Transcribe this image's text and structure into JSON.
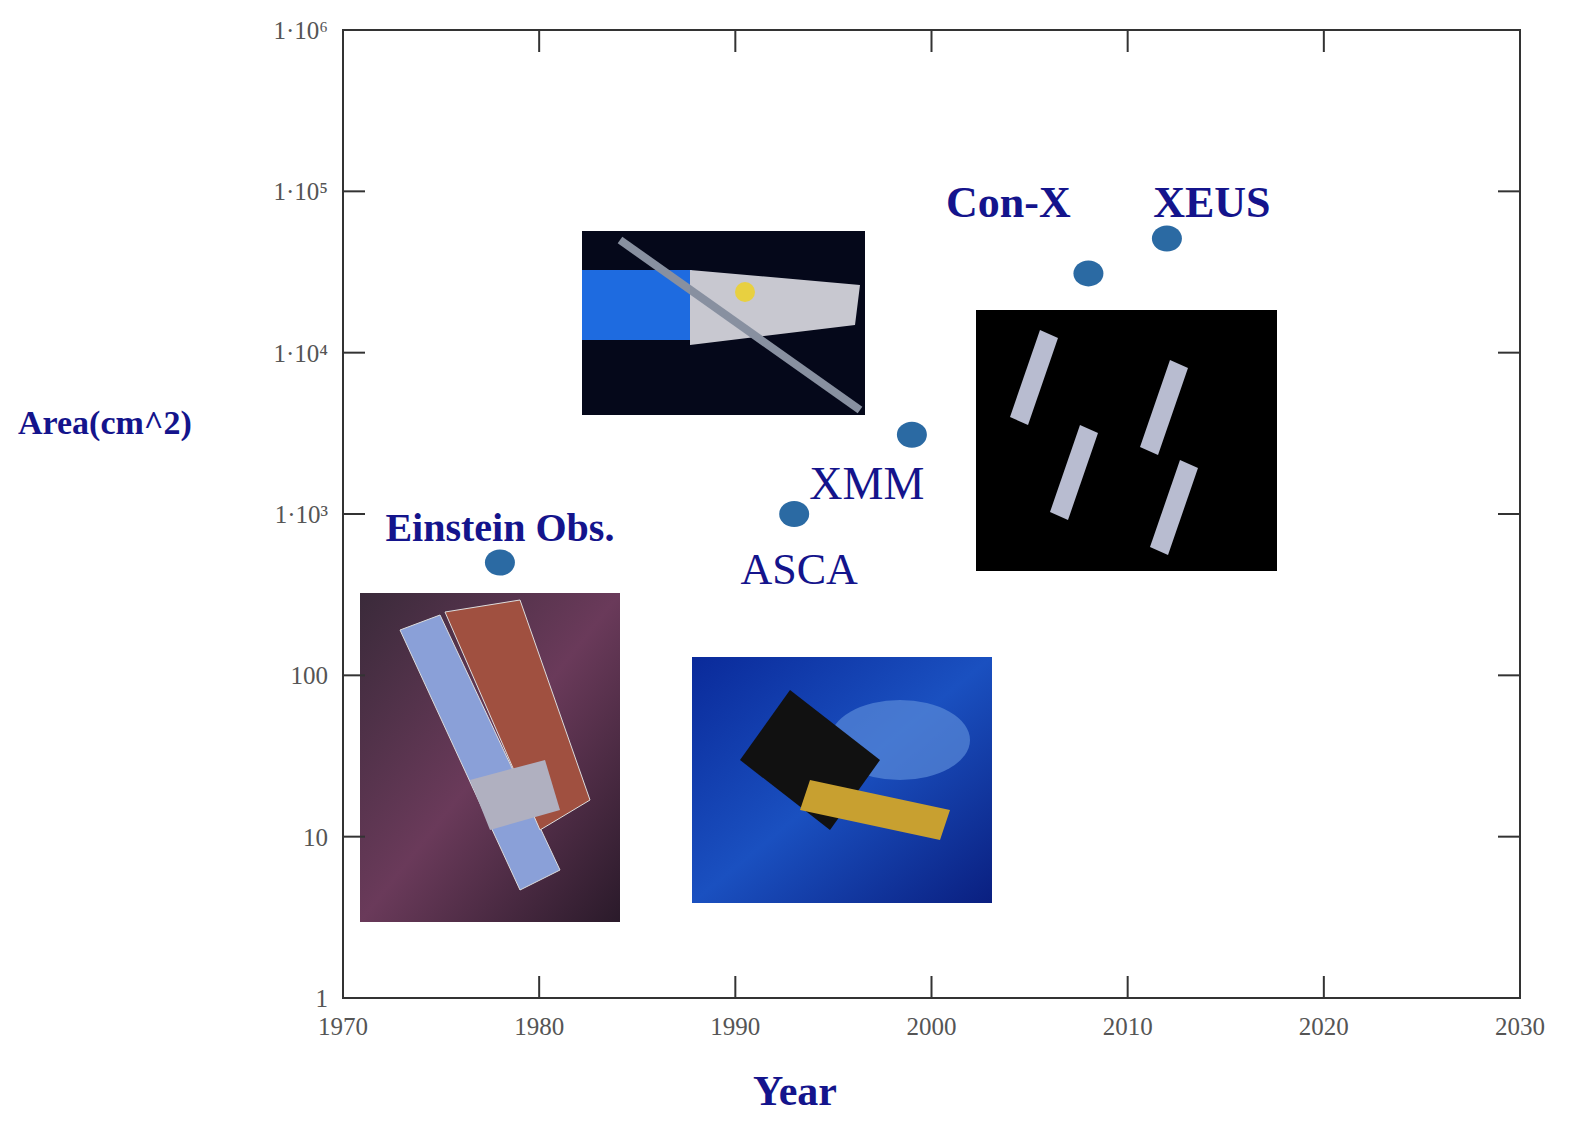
{
  "chart_data": {
    "type": "scatter",
    "x_label": "Year",
    "y_label": "Area(cm^2)",
    "x": [
      1978,
      1993,
      1999,
      2008,
      2012
    ],
    "values": [
      500,
      1000,
      3100,
      31000,
      51000
    ],
    "annotations": [
      "Einstein Obs.",
      "ASCA",
      "XMM",
      "Con-X",
      "XEUS"
    ],
    "color": "#2b6aa3",
    "marker": "circle",
    "log": "y",
    "grid": false,
    "xlim": [
      1970,
      2030
    ],
    "xticks": [
      1970,
      1980,
      1990,
      2000,
      2010,
      2020,
      2030
    ],
    "ylim": [
      1,
      1000000
    ],
    "yticks": [
      1,
      10,
      100,
      {
        "value": 1000,
        "label": "1·10³"
      },
      {
        "value": 10000,
        "label": "1·10⁴"
      },
      {
        "value": 100000,
        "label": "1·10⁵"
      },
      {
        "value": 1000000,
        "label": "1·10⁶"
      }
    ]
  }
}
